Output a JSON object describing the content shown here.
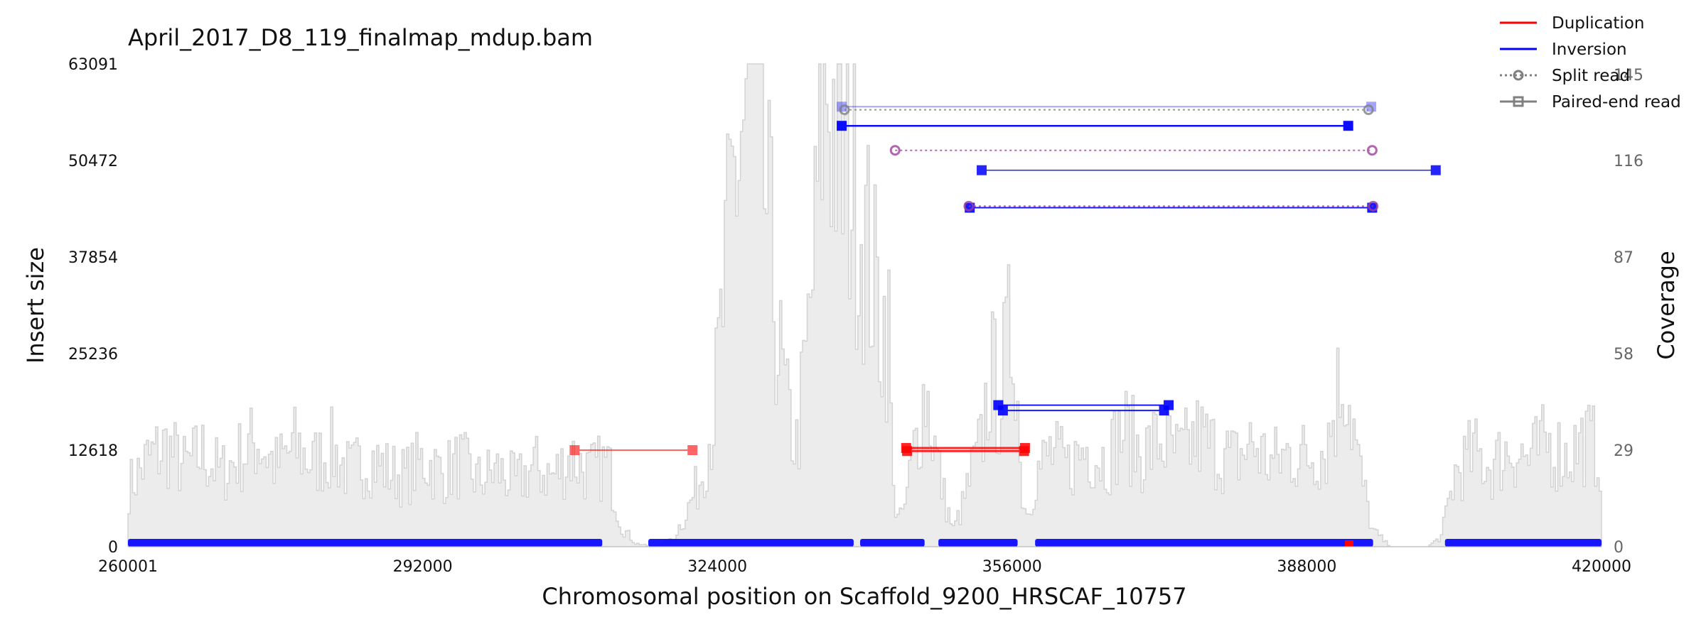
{
  "chart_data": {
    "type": "scatter",
    "title": "April_2017_D8_119_finalmap_mdup.bam",
    "xlabel": "Chromosomal position on Scaffold_9200_HRSCAF_10757",
    "ylabel": "Insert size",
    "y2label": "Coverage",
    "xlim": [
      260001,
      420000
    ],
    "ylim": [
      0,
      63091
    ],
    "y2lim": [
      0,
      145
    ],
    "x_ticks": [
      "260001",
      "292000",
      "324000",
      "356000",
      "388000",
      "420000"
    ],
    "x_tick_values": [
      260001,
      292000,
      324000,
      356000,
      388000,
      420000
    ],
    "y_ticks": [
      "0",
      "12618",
      "25236",
      "37854",
      "50472",
      "63091"
    ],
    "y_tick_values": [
      0,
      12618,
      25236,
      37854,
      50472,
      63091
    ],
    "y2_ticks": [
      "0",
      "29",
      "58",
      "87",
      "116",
      "145"
    ],
    "y2_tick_values": [
      0,
      29,
      58,
      87,
      116,
      145
    ],
    "legend_position": "top-right",
    "legend": [
      {
        "label": "Duplication",
        "kind": "line",
        "color": "#ff0000"
      },
      {
        "label": "Inversion",
        "kind": "line",
        "color": "#0000ff"
      },
      {
        "label": "Split read",
        "kind": "split",
        "color": "#808080"
      },
      {
        "label": "Paired-end read",
        "kind": "paired",
        "color": "#808080"
      }
    ],
    "colors": {
      "duplication": "#ff0000",
      "inversion": "#0000ff",
      "split": "#808080",
      "coverage_fill": "#ececec",
      "coverage_stroke": "#d3d3d3"
    },
    "coverage_profile": [
      {
        "x": 260001,
        "y": 18
      },
      {
        "x": 262000,
        "y": 26
      },
      {
        "x": 264000,
        "y": 30
      },
      {
        "x": 266000,
        "y": 24
      },
      {
        "x": 268000,
        "y": 28
      },
      {
        "x": 270000,
        "y": 22
      },
      {
        "x": 272000,
        "y": 27
      },
      {
        "x": 274000,
        "y": 32
      },
      {
        "x": 276000,
        "y": 24
      },
      {
        "x": 278000,
        "y": 30
      },
      {
        "x": 280000,
        "y": 25
      },
      {
        "x": 282000,
        "y": 29
      },
      {
        "x": 284000,
        "y": 22
      },
      {
        "x": 286000,
        "y": 27
      },
      {
        "x": 288000,
        "y": 23
      },
      {
        "x": 290000,
        "y": 21
      },
      {
        "x": 292000,
        "y": 26
      },
      {
        "x": 294000,
        "y": 22
      },
      {
        "x": 296000,
        "y": 25
      },
      {
        "x": 298000,
        "y": 20
      },
      {
        "x": 300000,
        "y": 23
      },
      {
        "x": 302000,
        "y": 19
      },
      {
        "x": 304000,
        "y": 24
      },
      {
        "x": 306000,
        "y": 21
      },
      {
        "x": 308000,
        "y": 27
      },
      {
        "x": 310000,
        "y": 22
      },
      {
        "x": 312000,
        "y": 25
      },
      {
        "x": 313500,
        "y": 6
      },
      {
        "x": 315000,
        "y": 1
      },
      {
        "x": 317000,
        "y": 0
      },
      {
        "x": 319000,
        "y": 2
      },
      {
        "x": 320500,
        "y": 10
      },
      {
        "x": 322000,
        "y": 20
      },
      {
        "x": 323500,
        "y": 40
      },
      {
        "x": 324500,
        "y": 70
      },
      {
        "x": 325500,
        "y": 105
      },
      {
        "x": 326500,
        "y": 125
      },
      {
        "x": 327500,
        "y": 140
      },
      {
        "x": 328500,
        "y": 120
      },
      {
        "x": 329500,
        "y": 95
      },
      {
        "x": 330500,
        "y": 60
      },
      {
        "x": 331500,
        "y": 40
      },
      {
        "x": 332500,
        "y": 30
      },
      {
        "x": 333500,
        "y": 55
      },
      {
        "x": 334500,
        "y": 90
      },
      {
        "x": 335500,
        "y": 145
      },
      {
        "x": 336500,
        "y": 130
      },
      {
        "x": 337500,
        "y": 110
      },
      {
        "x": 338500,
        "y": 115
      },
      {
        "x": 339500,
        "y": 100
      },
      {
        "x": 340500,
        "y": 85
      },
      {
        "x": 341500,
        "y": 70
      },
      {
        "x": 342500,
        "y": 65
      },
      {
        "x": 343000,
        "y": 15
      },
      {
        "x": 344000,
        "y": 8
      },
      {
        "x": 345000,
        "y": 25
      },
      {
        "x": 346500,
        "y": 48
      },
      {
        "x": 347500,
        "y": 30
      },
      {
        "x": 348500,
        "y": 15
      },
      {
        "x": 349500,
        "y": 5
      },
      {
        "x": 350500,
        "y": 12
      },
      {
        "x": 351500,
        "y": 22
      },
      {
        "x": 352500,
        "y": 30
      },
      {
        "x": 353500,
        "y": 52
      },
      {
        "x": 354500,
        "y": 45
      },
      {
        "x": 355500,
        "y": 60
      },
      {
        "x": 356200,
        "y": 70
      },
      {
        "x": 356800,
        "y": 20
      },
      {
        "x": 357500,
        "y": 10
      },
      {
        "x": 358500,
        "y": 22
      },
      {
        "x": 360000,
        "y": 28
      },
      {
        "x": 362000,
        "y": 24
      },
      {
        "x": 364000,
        "y": 30
      },
      {
        "x": 366000,
        "y": 26
      },
      {
        "x": 368000,
        "y": 35
      },
      {
        "x": 370000,
        "y": 28
      },
      {
        "x": 372000,
        "y": 32
      },
      {
        "x": 374000,
        "y": 27
      },
      {
        "x": 376000,
        "y": 33
      },
      {
        "x": 378000,
        "y": 29
      },
      {
        "x": 380000,
        "y": 26
      },
      {
        "x": 382000,
        "y": 31
      },
      {
        "x": 384000,
        "y": 25
      },
      {
        "x": 386000,
        "y": 28
      },
      {
        "x": 388000,
        "y": 27
      },
      {
        "x": 390000,
        "y": 30
      },
      {
        "x": 392000,
        "y": 55
      },
      {
        "x": 393500,
        "y": 25
      },
      {
        "x": 395000,
        "y": 5
      },
      {
        "x": 397000,
        "y": 0
      },
      {
        "x": 399000,
        "y": 0
      },
      {
        "x": 401000,
        "y": 0
      },
      {
        "x": 402500,
        "y": 3
      },
      {
        "x": 404000,
        "y": 22
      },
      {
        "x": 406000,
        "y": 28
      },
      {
        "x": 408000,
        "y": 24
      },
      {
        "x": 410000,
        "y": 30
      },
      {
        "x": 412000,
        "y": 26
      },
      {
        "x": 414000,
        "y": 31
      },
      {
        "x": 416000,
        "y": 27
      },
      {
        "x": 418000,
        "y": 32
      },
      {
        "x": 420000,
        "y": 28
      }
    ],
    "variants": [
      {
        "type": "duplication",
        "evidence": "paired",
        "x1": 308500,
        "x2": 321300,
        "y": 12618,
        "opacity": 0.6,
        "width": 2
      },
      {
        "type": "duplication",
        "evidence": "paired",
        "x1": 344500,
        "x2": 357400,
        "y": 12900,
        "opacity": 0.85,
        "width": 3
      },
      {
        "type": "duplication",
        "evidence": "paired",
        "x1": 344600,
        "x2": 357300,
        "y": 12500,
        "opacity": 0.85,
        "width": 3
      },
      {
        "type": "inversion",
        "evidence": "paired",
        "x1": 354500,
        "x2": 373000,
        "y": 18500,
        "opacity": 0.9,
        "width": 2
      },
      {
        "type": "inversion",
        "evidence": "paired",
        "x1": 355000,
        "x2": 372500,
        "y": 17800,
        "opacity": 0.9,
        "width": 2
      },
      {
        "type": "inversion",
        "evidence": "paired",
        "x1": 337500,
        "x2": 392500,
        "y": 55000,
        "opacity": 0.95,
        "width": 2.5
      },
      {
        "type": "inversion",
        "evidence": "paired",
        "x1": 337500,
        "x2": 395000,
        "y": 57500,
        "opacity": 0.35,
        "width": 2
      },
      {
        "type": "inversion",
        "evidence": "paired",
        "x1": 352700,
        "x2": 402000,
        "y": 49200,
        "opacity": 0.85,
        "width": 1.5
      },
      {
        "type": "inversion",
        "evidence": "paired",
        "x1": 351400,
        "x2": 395100,
        "y": 44300,
        "opacity": 0.9,
        "width": 2
      },
      {
        "type": "split",
        "evidence": "split",
        "x1": 337800,
        "x2": 394700,
        "y": 57100,
        "opacity": 0.8,
        "width": 2
      },
      {
        "type": "split",
        "evidence": "split",
        "x1": 343300,
        "x2": 395100,
        "y": 51800,
        "opacity": 0.8,
        "width": 2,
        "color": "#a040a0"
      },
      {
        "type": "split",
        "evidence": "split",
        "x1": 351300,
        "x2": 395200,
        "y": 44500,
        "opacity": 0.8,
        "width": 2,
        "color": "#a040a0"
      }
    ],
    "bottom_reads": [
      {
        "x1": 260001,
        "x2": 311500
      },
      {
        "x1": 316500,
        "x2": 338800
      },
      {
        "x1": 339500,
        "x2": 346500
      },
      {
        "x1": 348000,
        "x2": 356600
      },
      {
        "x1": 358500,
        "x2": 395200
      },
      {
        "x1": 403000,
        "x2": 420000
      }
    ],
    "bottom_dup_mark": {
      "x": 392600
    }
  }
}
